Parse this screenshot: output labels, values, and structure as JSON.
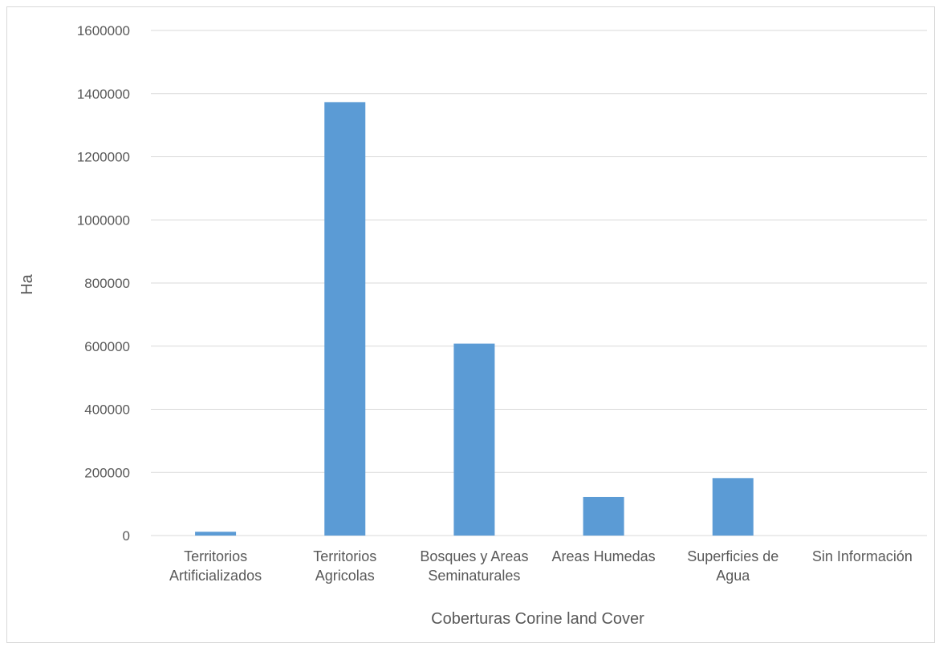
{
  "chart_data": {
    "type": "bar",
    "title": "",
    "xlabel": "Coberturas Corine land Cover",
    "ylabel": "Ha",
    "ylim": [
      0,
      1600000
    ],
    "yticks": [
      "0",
      "200000",
      "400000",
      "600000",
      "800000",
      "1000000",
      "1200000",
      "1400000",
      "1600000"
    ],
    "grid": true,
    "legend": "none",
    "bar_color": "#5b9bd5",
    "categories": [
      [
        "Territorios",
        "Artificializados"
      ],
      [
        "Territorios",
        "Agricolas"
      ],
      [
        "Bosques y Areas",
        "Seminaturales"
      ],
      [
        "Areas Humedas"
      ],
      [
        "Superficies de",
        "Agua"
      ],
      [
        "Sin Información"
      ]
    ],
    "values": [
      12000,
      1373000,
      608000,
      122000,
      182000,
      0
    ]
  }
}
